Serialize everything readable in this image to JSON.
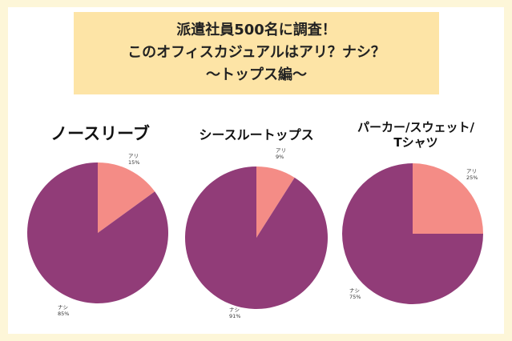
{
  "header": {
    "line1": "派遣社員500名に調査！",
    "line2": "このオフィスカジュアルはアリ？ナシ？",
    "line3": "〜トップス編〜"
  },
  "chart_data": [
    {
      "type": "pie",
      "title": "ノースリーブ",
      "slices": [
        {
          "label": "アリ",
          "value": 15,
          "pct_text": "15%",
          "color": "#f48c86"
        },
        {
          "label": "ナシ",
          "value": 85,
          "pct_text": "85%",
          "color": "#913c78"
        }
      ]
    },
    {
      "type": "pie",
      "title": "シースルートップス",
      "slices": [
        {
          "label": "アリ",
          "value": 9,
          "pct_text": "9%",
          "color": "#f48c86"
        },
        {
          "label": "ナシ",
          "value": 91,
          "pct_text": "91%",
          "color": "#913c78"
        }
      ]
    },
    {
      "type": "pie",
      "title_line1": "パーカー/スウェット/",
      "title_line2": "Tシャツ",
      "slices": [
        {
          "label": "アリ",
          "value": 25,
          "pct_text": "25%",
          "color": "#f48c86"
        },
        {
          "label": "ナシ",
          "value": 75,
          "pct_text": "75%",
          "color": "#913c78"
        }
      ]
    }
  ]
}
